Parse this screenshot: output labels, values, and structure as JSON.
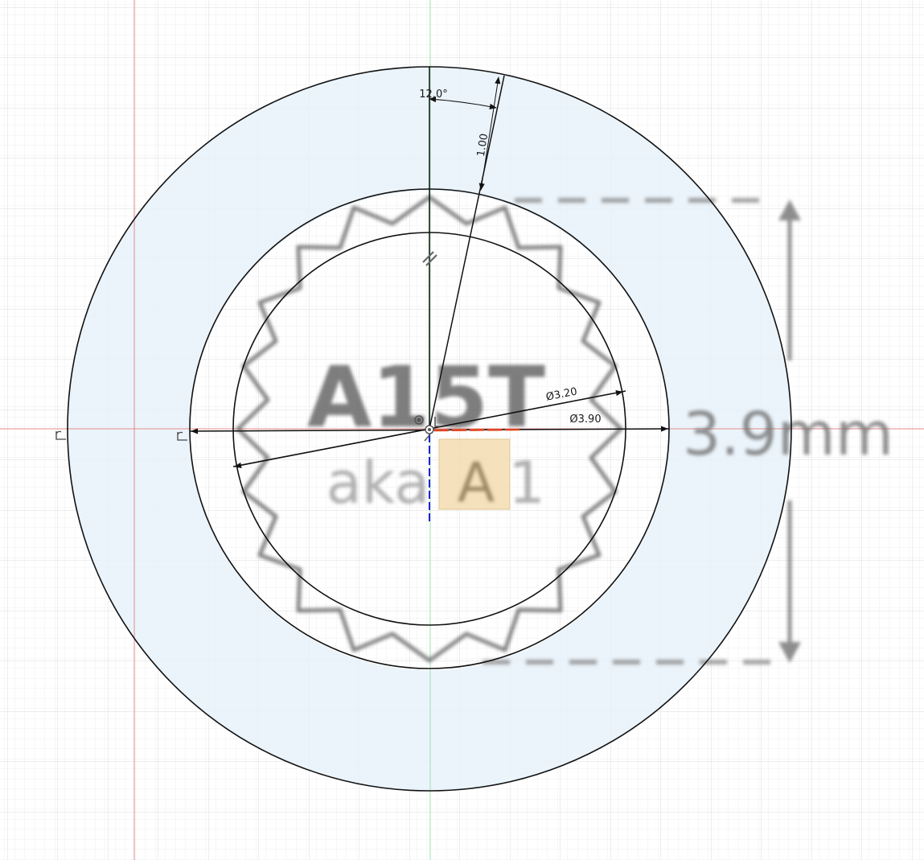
{
  "canvas": {
    "background_color": "#ffffff",
    "grid_minor_color": "#eeeeee",
    "grid_major_color": "#dcdcdc",
    "sketch_profile_fill": "#e9f3fb",
    "sketch_line_color": "#111111",
    "x_axis_color": "#e24a4a",
    "y_axis_color": "#7fd19a"
  },
  "reference_image": {
    "title_text": "A15T",
    "subtitle_text": "aka",
    "highlighted_letter": "A",
    "trailing_char": "1",
    "size_label": "3.9mm"
  },
  "dimensions": {
    "angle": "12.0°",
    "radial_length": "1.00",
    "inner_diameter": "Ø3.20",
    "outer_diameter": "Ø3.90"
  },
  "icons": {
    "origin": "origin-point-icon",
    "parallel_constraint": "parallel-constraint-icon",
    "fix_constraint": "fix-constraint-icon",
    "perpendicular_constraint": "perpendicular-constraint-icon"
  }
}
